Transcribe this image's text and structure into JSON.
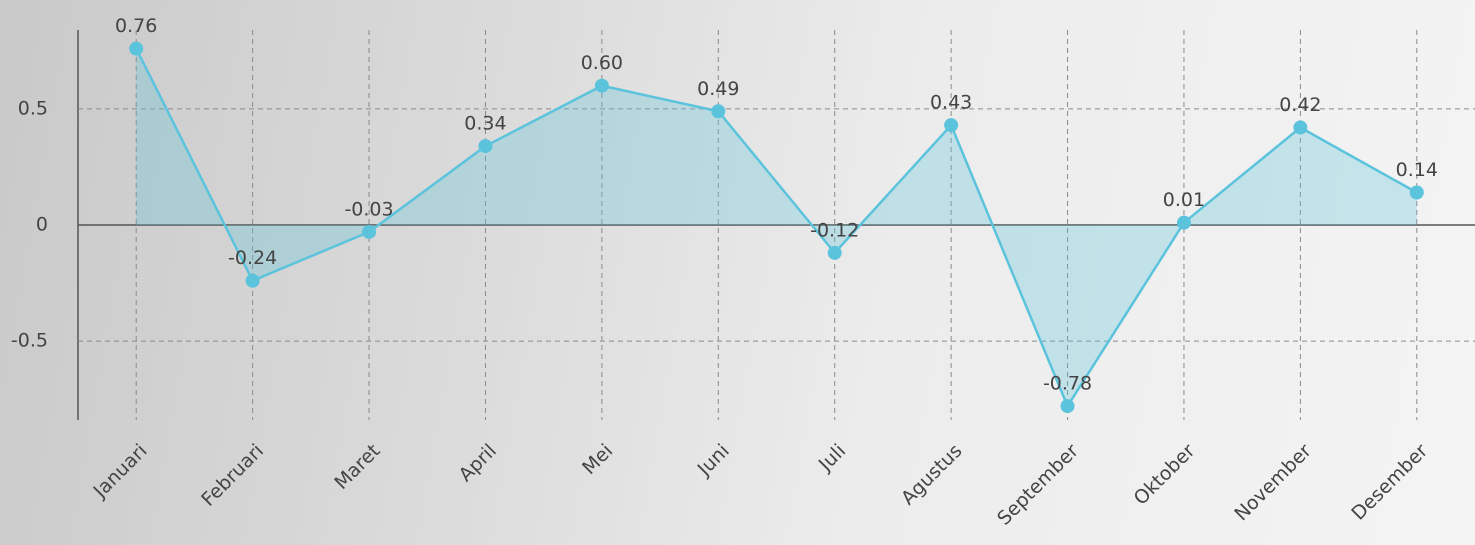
{
  "chart_data": {
    "type": "area-line",
    "categories": [
      "Januari",
      "Februari",
      "Maret",
      "April",
      "Mei",
      "Juni",
      "Juli",
      "Agustus",
      "September",
      "Oktober",
      "November",
      "Desember"
    ],
    "values": [
      0.76,
      -0.24,
      -0.03,
      0.34,
      0.6,
      0.49,
      -0.12,
      0.43,
      -0.78,
      0.01,
      0.42,
      0.14
    ],
    "value_labels": [
      "0.76",
      "-0.24",
      "-0.03",
      "0.34",
      "0.60",
      "0.49",
      "-0.12",
      "0.43",
      "-0.78",
      "0.01",
      "0.42",
      "0.14"
    ],
    "color": "#5bc3dc",
    "ylim": [
      -0.84,
      0.84
    ],
    "yticks": [
      -0.5,
      0,
      0.5
    ],
    "grid": true
  }
}
